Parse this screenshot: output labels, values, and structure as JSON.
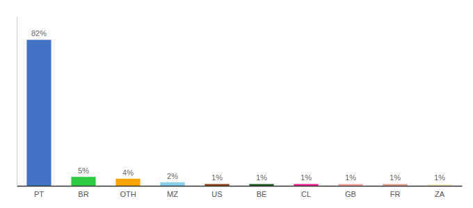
{
  "chart_data": {
    "type": "bar",
    "categories": [
      "PT",
      "BR",
      "OTH",
      "MZ",
      "US",
      "BE",
      "CL",
      "GB",
      "FR",
      "ZA"
    ],
    "values": [
      82,
      5,
      4,
      2,
      1,
      1,
      1,
      1,
      1,
      1
    ],
    "value_labels": [
      "82%",
      "5%",
      "4%",
      "2%",
      "1%",
      "1%",
      "1%",
      "1%",
      "1%",
      "1%"
    ],
    "colors": [
      "#4472C4",
      "#2ECC40",
      "#FFA500",
      "#87CEEB",
      "#8B4513",
      "#1B5E20",
      "#E91E8C",
      "#F4A0A0",
      "#E8A090",
      "#F5F0C8"
    ],
    "ylim": [
      0,
      95
    ],
    "data_labels": true,
    "grid": false,
    "tick_labels": "x"
  }
}
